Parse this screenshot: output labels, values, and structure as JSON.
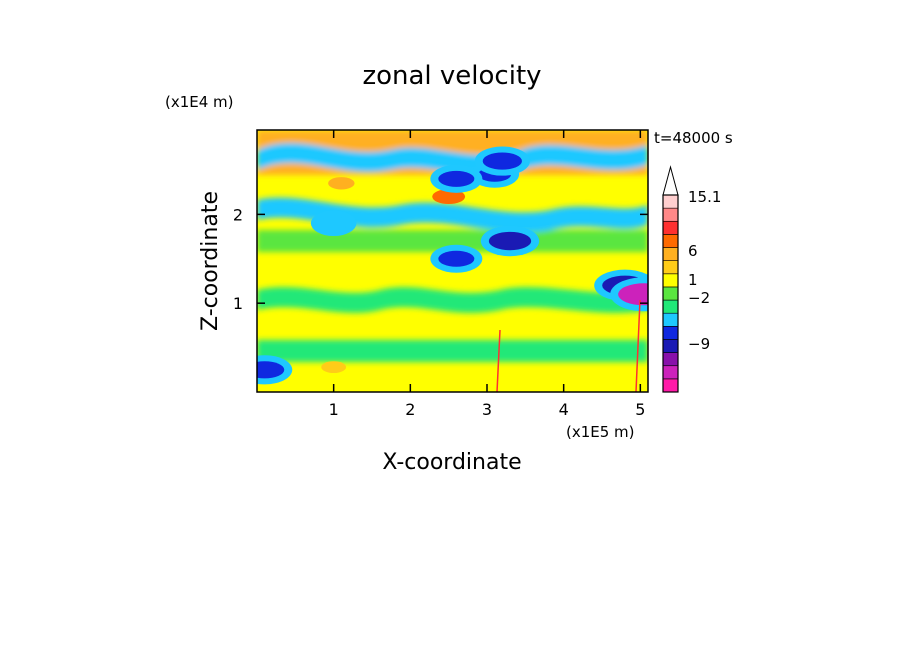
{
  "chart_data": {
    "type": "heatmap",
    "title": "zonal velocity",
    "xlabel": "X-coordinate",
    "ylabel": "Z-coordinate",
    "x_unit": "(x1E5 m)",
    "y_unit": "(x1E4 m)",
    "time_label": "t=48000 s",
    "xlim": [
      0,
      5.1
    ],
    "ylim": [
      0,
      2.95
    ],
    "x_ticks": [
      1,
      2,
      3,
      4,
      5
    ],
    "y_ticks": [
      1,
      2
    ],
    "x_tick_labels": [
      "1",
      "2",
      "3",
      "4",
      "5"
    ],
    "y_tick_labels": [
      "1",
      "2"
    ],
    "grid": false,
    "colorbar": {
      "levels": [
        {
          "color": "#ff1aa8"
        },
        {
          "color": "#cc22bb"
        },
        {
          "color": "#8811aa"
        },
        {
          "color": "#1a1ab4"
        },
        {
          "color": "#0f28e0"
        },
        {
          "color": "#1ec8ff"
        },
        {
          "color": "#20e878"
        },
        {
          "color": "#5ae640"
        },
        {
          "color": "#ffff00"
        },
        {
          "color": "#ffcc18"
        },
        {
          "color": "#ffb020"
        },
        {
          "color": "#ff6a00"
        },
        {
          "color": "#ff3030"
        },
        {
          "color": "#ff8888"
        },
        {
          "color": "#ffcfcf"
        }
      ],
      "tick_labels": [
        "15.1",
        "6",
        "1",
        "−2",
        "−9"
      ],
      "max_label": "15.1",
      "extend": "max"
    },
    "field_features": [
      {
        "x": 1.0,
        "z": 0.28,
        "value": 1.5
      },
      {
        "x": 1.1,
        "z": 2.35,
        "value": 2.0
      },
      {
        "x": 2.5,
        "z": 2.2,
        "value": 4.0
      },
      {
        "x": 3.1,
        "z": 2.45,
        "value": -4.0
      },
      {
        "x": 3.2,
        "z": 2.6,
        "value": -6.0
      },
      {
        "x": 2.6,
        "z": 2.4,
        "value": -5.0
      },
      {
        "x": 3.3,
        "z": 1.7,
        "value": -7.0
      },
      {
        "x": 2.6,
        "z": 1.5,
        "value": -5.0
      },
      {
        "x": 4.8,
        "z": 1.2,
        "value": -8.0
      },
      {
        "x": 5.05,
        "z": 1.1,
        "value": -10.0
      },
      {
        "x": 1.0,
        "z": 1.9,
        "value": -3.0
      },
      {
        "x": 0.1,
        "z": 0.25,
        "value": -6.0
      }
    ]
  }
}
